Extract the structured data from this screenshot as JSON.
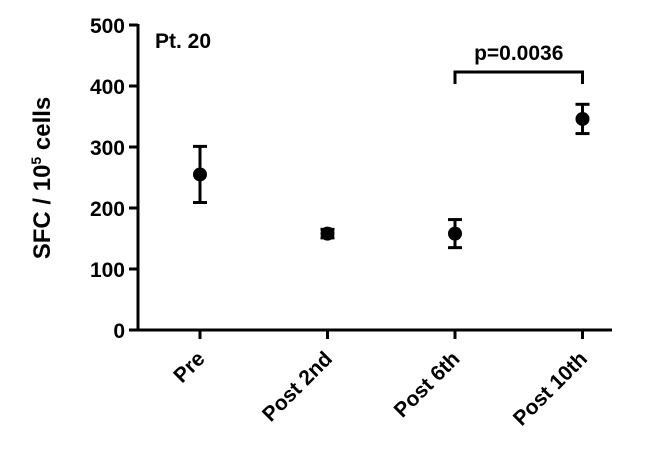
{
  "chart_data": {
    "type": "dot-errorbar",
    "annotation": "Pt. 20",
    "y_label": {
      "text": "SFC / 10",
      "sup": "5",
      "rest": " cells"
    },
    "categories": [
      "Pre",
      "Post 2nd",
      "Post 6th",
      "Post 10th"
    ],
    "values": [
      255,
      158,
      158,
      346
    ],
    "errors": [
      46,
      7,
      23,
      24
    ],
    "color": "#000000",
    "ylim": [
      0,
      500
    ],
    "yticks": [
      0,
      100,
      200,
      300,
      400,
      500
    ],
    "significance": {
      "from": 2,
      "to": 3,
      "label": "p=0.0036"
    }
  }
}
